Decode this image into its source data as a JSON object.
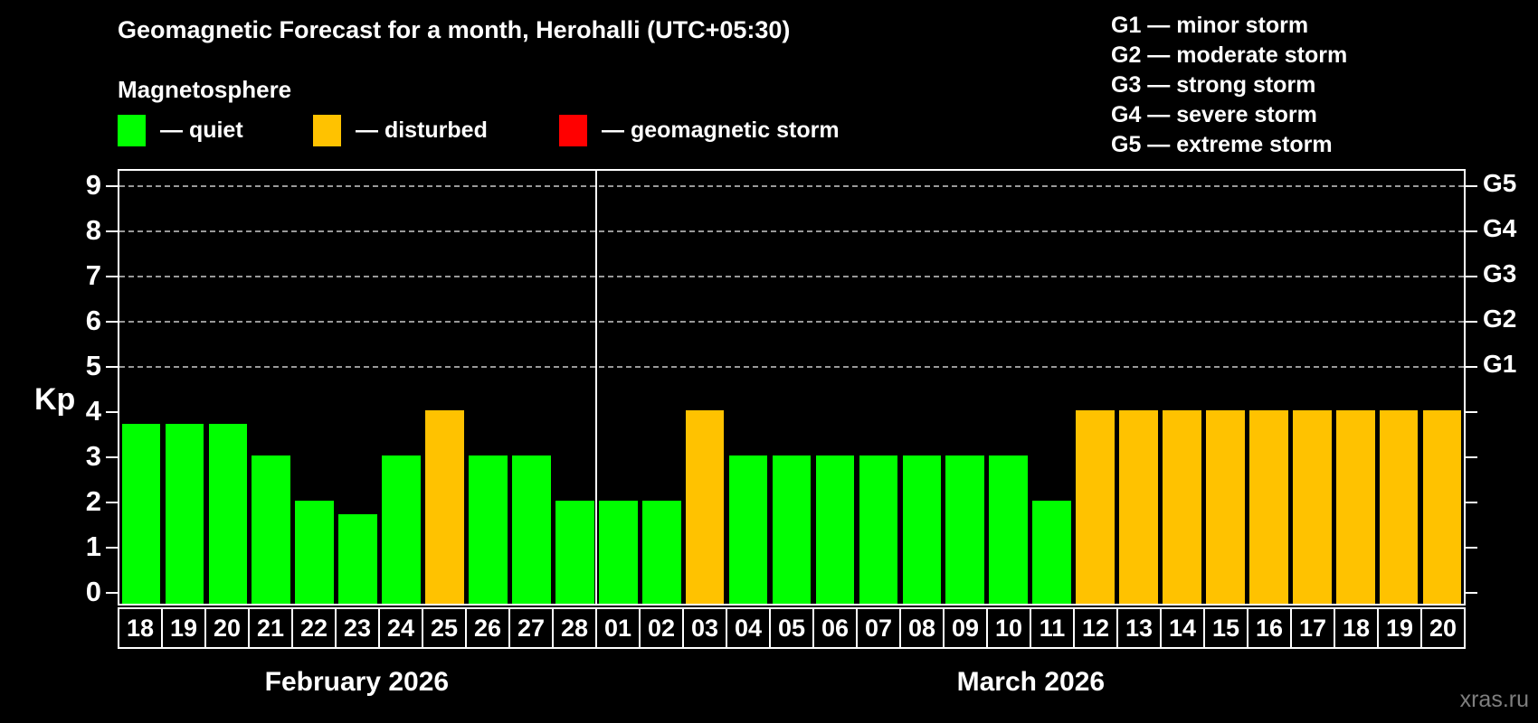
{
  "watermark": "xras.ru",
  "legend": {
    "title": "Magnetosphere",
    "items": [
      {
        "name": "quiet",
        "label": "— quiet",
        "color": "#00ff00"
      },
      {
        "name": "disturbed",
        "label": "— disturbed",
        "color": "#ffc200"
      },
      {
        "name": "storm",
        "label": "— geomagnetic storm",
        "color": "#ff0000"
      }
    ]
  },
  "storm_scale": [
    "G1 — minor storm",
    "G2 — moderate storm",
    "G3 — strong storm",
    "G4 — severe storm",
    "G5 — extreme storm"
  ],
  "colors": {
    "background": "#000000",
    "text": "#ffffff",
    "axis": "#ffffff",
    "grid": "#999999",
    "quiet": "#00ff00",
    "disturbed": "#ffc200",
    "storm": "#ff0000",
    "watermark": "#7f7f7f"
  },
  "chart_data": {
    "type": "bar",
    "title": "Geomagnetic Forecast for a month, Herohalli (UTC+05:30)",
    "ylabel": "Kp",
    "xlabel": "",
    "ylim": [
      0,
      9.5
    ],
    "y_ticks": [
      0,
      1,
      2,
      3,
      4,
      5,
      6,
      7,
      8,
      9
    ],
    "gridlines_kp": [
      5,
      6,
      7,
      8,
      9
    ],
    "grid_style": "dashed horizontal lines at storm levels only",
    "legend_position": "top-left",
    "right_axis_labels": [
      {
        "text": "G1",
        "kp": 5
      },
      {
        "text": "G2",
        "kp": 6
      },
      {
        "text": "G3",
        "kp": 7
      },
      {
        "text": "G4",
        "kp": 8
      },
      {
        "text": "G5",
        "kp": 9
      }
    ],
    "months": [
      {
        "label": "February 2026",
        "days": [
          {
            "day": "18",
            "kp": 3.7,
            "status": "quiet"
          },
          {
            "day": "19",
            "kp": 3.7,
            "status": "quiet"
          },
          {
            "day": "20",
            "kp": 3.7,
            "status": "quiet"
          },
          {
            "day": "21",
            "kp": 3.0,
            "status": "quiet"
          },
          {
            "day": "22",
            "kp": 2.0,
            "status": "quiet"
          },
          {
            "day": "23",
            "kp": 1.7,
            "status": "quiet"
          },
          {
            "day": "24",
            "kp": 3.0,
            "status": "quiet"
          },
          {
            "day": "25",
            "kp": 4.0,
            "status": "disturbed"
          },
          {
            "day": "26",
            "kp": 3.0,
            "status": "quiet"
          },
          {
            "day": "27",
            "kp": 3.0,
            "status": "quiet"
          },
          {
            "day": "28",
            "kp": 2.0,
            "status": "quiet"
          }
        ]
      },
      {
        "label": "March 2026",
        "days": [
          {
            "day": "01",
            "kp": 2.0,
            "status": "quiet"
          },
          {
            "day": "02",
            "kp": 2.0,
            "status": "quiet"
          },
          {
            "day": "03",
            "kp": 4.0,
            "status": "disturbed"
          },
          {
            "day": "04",
            "kp": 3.0,
            "status": "quiet"
          },
          {
            "day": "05",
            "kp": 3.0,
            "status": "quiet"
          },
          {
            "day": "06",
            "kp": 3.0,
            "status": "quiet"
          },
          {
            "day": "07",
            "kp": 3.0,
            "status": "quiet"
          },
          {
            "day": "08",
            "kp": 3.0,
            "status": "quiet"
          },
          {
            "day": "09",
            "kp": 3.0,
            "status": "quiet"
          },
          {
            "day": "10",
            "kp": 3.0,
            "status": "quiet"
          },
          {
            "day": "11",
            "kp": 2.0,
            "status": "quiet"
          },
          {
            "day": "12",
            "kp": 4.0,
            "status": "disturbed"
          },
          {
            "day": "13",
            "kp": 4.0,
            "status": "disturbed"
          },
          {
            "day": "14",
            "kp": 4.0,
            "status": "disturbed"
          },
          {
            "day": "15",
            "kp": 4.0,
            "status": "disturbed"
          },
          {
            "day": "16",
            "kp": 4.0,
            "status": "disturbed"
          },
          {
            "day": "17",
            "kp": 4.0,
            "status": "disturbed"
          },
          {
            "day": "18",
            "kp": 4.0,
            "status": "disturbed"
          },
          {
            "day": "19",
            "kp": 4.0,
            "status": "disturbed"
          },
          {
            "day": "20",
            "kp": 4.0,
            "status": "disturbed"
          }
        ]
      }
    ]
  }
}
